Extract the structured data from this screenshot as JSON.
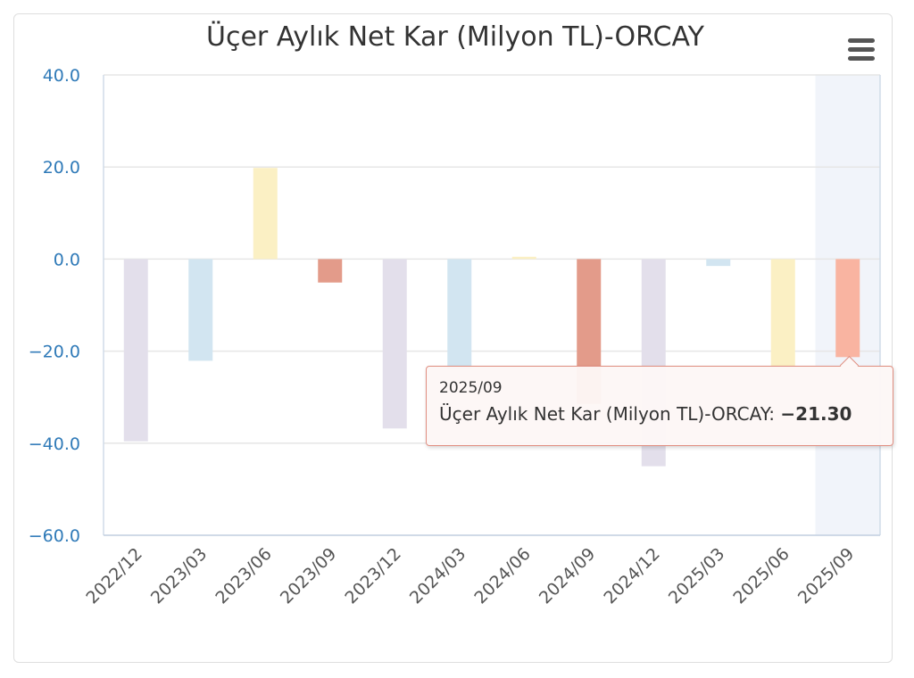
{
  "chart_data": {
    "type": "bar",
    "title": "Üçer Aylık Net Kar (Milyon TL)-ORCAY",
    "xlabel": "",
    "ylabel": "",
    "ylim": [
      -60,
      40
    ],
    "yticks": [
      "40.0",
      "20.0",
      "0.0",
      "−20.0",
      "−40.0",
      "−60.0"
    ],
    "ytick_values": [
      40,
      20,
      0,
      -20,
      -40,
      -60
    ],
    "categories": [
      "2022/12",
      "2023/03",
      "2023/06",
      "2023/09",
      "2023/12",
      "2024/03",
      "2024/06",
      "2024/09",
      "2024/12",
      "2025/03",
      "2025/06",
      "2025/09"
    ],
    "values": [
      -39.6,
      -22.1,
      19.8,
      -5.1,
      -36.8,
      -24.0,
      0.5,
      -31.5,
      -45.0,
      -1.5,
      -23.8,
      -21.3
    ],
    "bar_colors": [
      "#e3dfeb",
      "#d2e5f1",
      "#fbf0c4",
      "#e39b8a",
      "#e3dfeb",
      "#d2e5f1",
      "#fbf0c4",
      "#e39b8a",
      "#e3dfeb",
      "#d2e5f1",
      "#fbf0c4",
      "#f9b4a1"
    ],
    "highlighted_category": "2025/09",
    "grid": true,
    "legend": "none"
  },
  "tooltip": {
    "date": "2025/09",
    "series_label": "Üçer Aylık Net Kar (Milyon TL)-ORCAY:",
    "value": "−21.30"
  },
  "colors": {
    "axis_label": "#2f7ab8",
    "grid": "#e6e6e6",
    "highlight_band": "#f1f4fa",
    "tooltip_border": "#e08e80"
  },
  "icons": {
    "menu": "hamburger-menu-icon"
  }
}
